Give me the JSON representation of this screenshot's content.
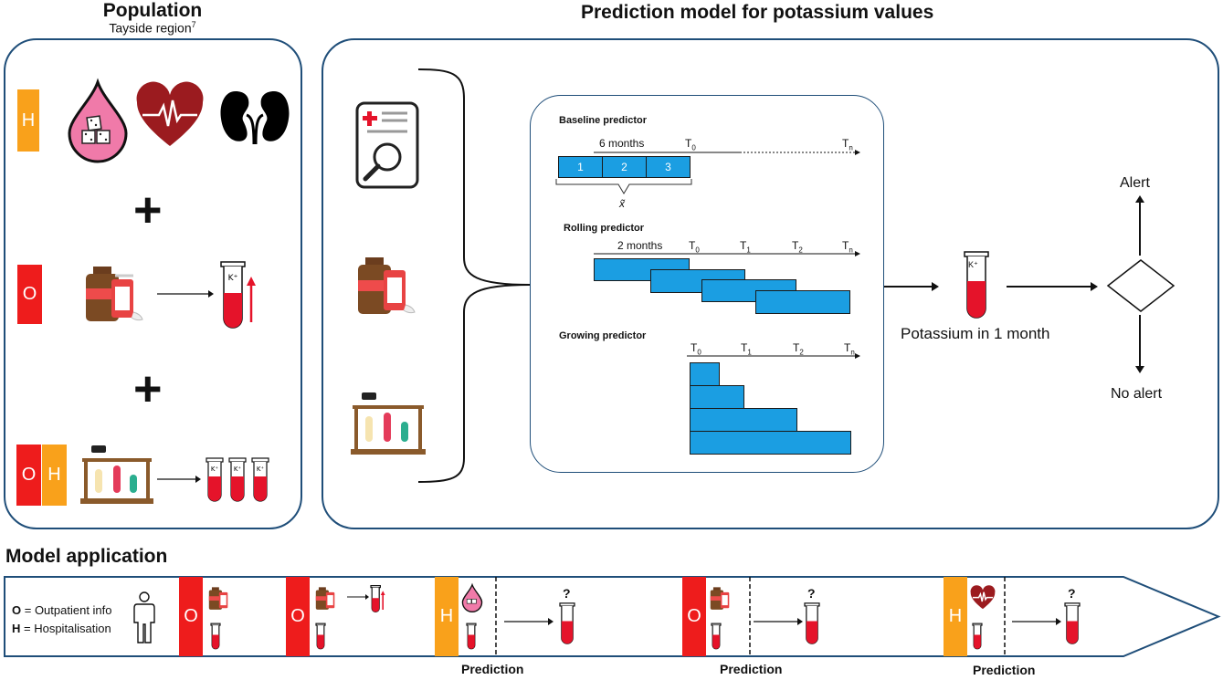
{
  "population": {
    "title": "Population",
    "subtitle": "Tayside region",
    "subtitle_sup": "7",
    "rows": [
      {
        "badges": [
          "H"
        ]
      },
      {
        "badges": [
          "O"
        ]
      },
      {
        "badges": [
          "O",
          "H"
        ]
      }
    ],
    "plus": "+"
  },
  "prediction_model": {
    "title": "Prediction model for potassium values",
    "baseline": {
      "label": "Baseline predictor",
      "window": "6 months",
      "t0": "T",
      "t0_sub": "0",
      "tn": "T",
      "tn_sub": "n",
      "segments": [
        "1",
        "2",
        "3"
      ],
      "summary_symbol": "x̃"
    },
    "rolling": {
      "label": "Rolling predictor",
      "window": "2 months",
      "ticks": [
        {
          "t": "T",
          "sub": "0"
        },
        {
          "t": "T",
          "sub": "1"
        },
        {
          "t": "T",
          "sub": "2"
        },
        {
          "t": "T",
          "sub": "n"
        }
      ]
    },
    "growing": {
      "label": "Growing predictor",
      "ticks": [
        {
          "t": "T",
          "sub": "0"
        },
        {
          "t": "T",
          "sub": "1"
        },
        {
          "t": "T",
          "sub": "2"
        },
        {
          "t": "T",
          "sub": "n"
        }
      ]
    },
    "output_label": "Potassium in 1 month",
    "tube_label": "K⁺",
    "alert": "Alert",
    "no_alert": "No alert"
  },
  "model_application": {
    "title": "Model application",
    "legend_o_key": "O",
    "legend_o_text": " = Outpatient info",
    "legend_h_key": "H",
    "legend_h_text": " = Hospitalisation",
    "events": [
      "O",
      "O",
      "H",
      "O",
      "H"
    ],
    "unknown": "?",
    "prediction_label": "Prediction"
  },
  "colors": {
    "outpatient": "#ee1c1c",
    "hospital": "#f9a11b",
    "border": "#1f4e79",
    "bar": "#1b9ee2"
  }
}
